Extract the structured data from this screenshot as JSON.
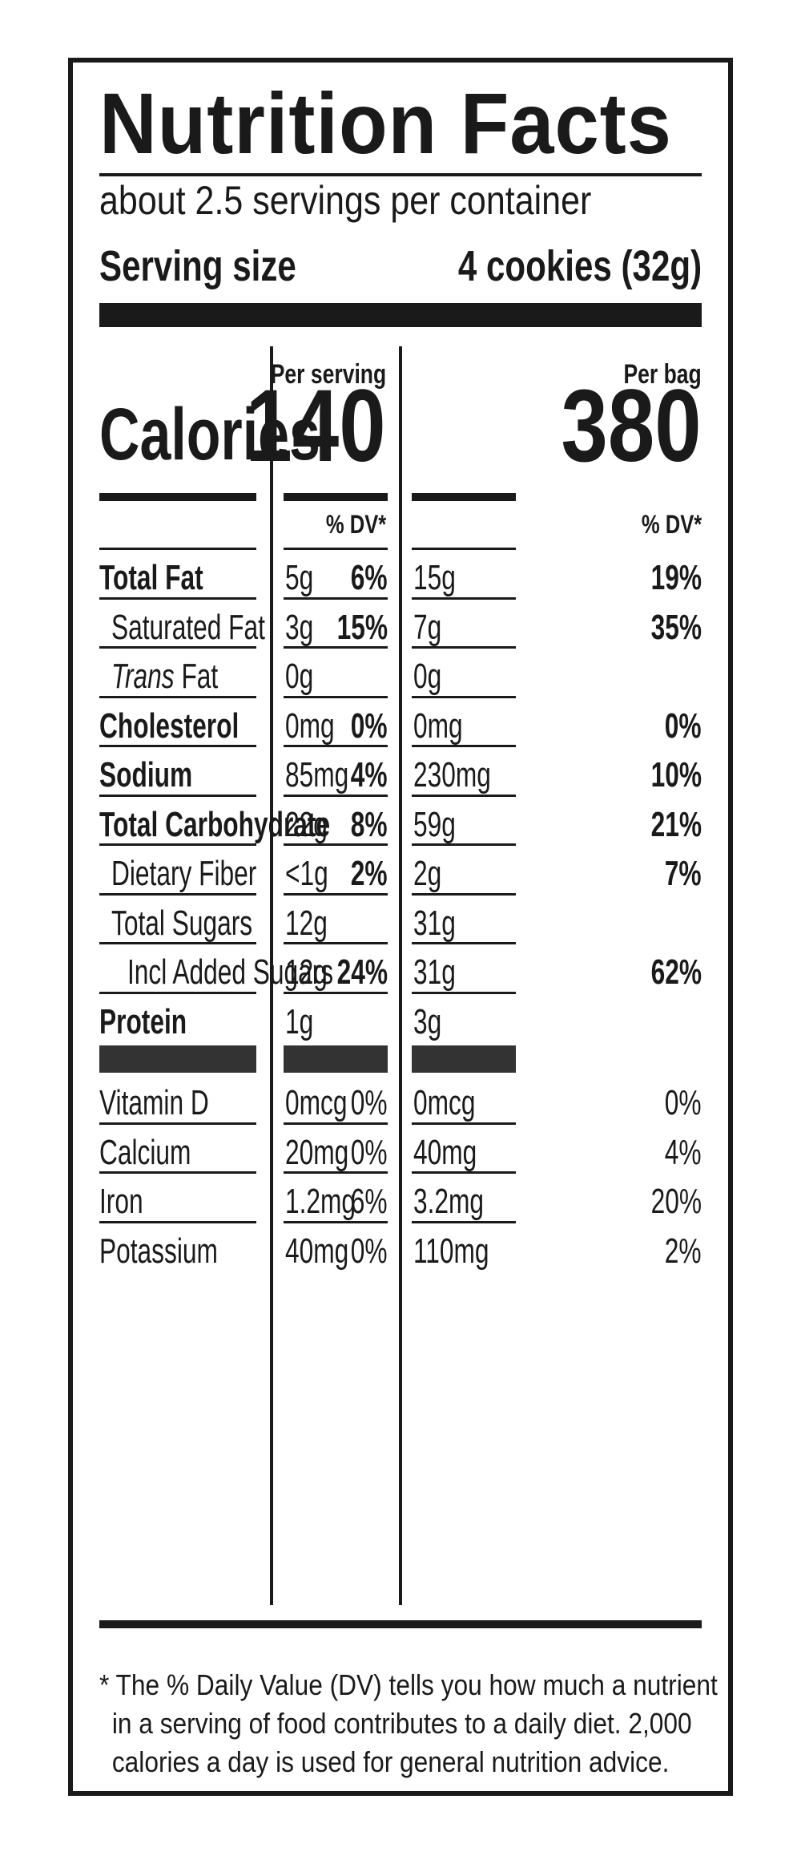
{
  "title": "Nutrition Facts",
  "servings_per_container": "about 2.5 servings per container",
  "serving_size_label": "Serving size",
  "serving_size_value": "4 cookies (32g)",
  "calories_label": "Calories",
  "per_serving_label": "Per serving",
  "per_bag_label": "Per bag",
  "calories_per_serving": "140",
  "calories_per_bag": "380",
  "dv_header": "% DV*",
  "nutrients": [
    {
      "name": "Total Fat",
      "s_amt": "5g",
      "s_dv": "6%",
      "b_amt": "15g",
      "b_dv": "19%"
    },
    {
      "name": "Saturated Fat",
      "s_amt": "3g",
      "s_dv": "15%",
      "b_amt": "7g",
      "b_dv": "35%"
    },
    {
      "name_em": "Trans",
      "name": " Fat",
      "s_amt": "0g",
      "s_dv": "",
      "b_amt": "0g",
      "b_dv": ""
    },
    {
      "name": "Cholesterol",
      "s_amt": "0mg",
      "s_dv": "0%",
      "b_amt": "0mg",
      "b_dv": "0%"
    },
    {
      "name": "Sodium",
      "s_amt": "85mg",
      "s_dv": "4%",
      "b_amt": "230mg",
      "b_dv": "10%"
    },
    {
      "name": "Total Carbohydrate",
      "s_amt": "22g",
      "s_dv": "8%",
      "b_amt": "59g",
      "b_dv": "21%"
    },
    {
      "name": "Dietary Fiber",
      "s_amt": "<1g",
      "s_dv": "2%",
      "b_amt": "2g",
      "b_dv": "7%"
    },
    {
      "name": "Total Sugars",
      "s_amt": "12g",
      "s_dv": "",
      "b_amt": "31g",
      "b_dv": ""
    },
    {
      "name": "Incl Added Sugars",
      "s_amt": "12g",
      "s_dv": "24%",
      "b_amt": "31g",
      "b_dv": "62%"
    },
    {
      "name": "Protein",
      "s_amt": "1g",
      "s_dv": "",
      "b_amt": "3g",
      "b_dv": ""
    }
  ],
  "vitamins": [
    {
      "name": "Vitamin D",
      "s_amt": "0mcg",
      "s_dv": "0%",
      "b_amt": "0mcg",
      "b_dv": "0%"
    },
    {
      "name": "Calcium",
      "s_amt": "20mg",
      "s_dv": "0%",
      "b_amt": "40mg",
      "b_dv": "4%"
    },
    {
      "name": "Iron",
      "s_amt": "1.2mg",
      "s_dv": "6%",
      "b_amt": "3.2mg",
      "b_dv": "20%"
    },
    {
      "name": "Potassium",
      "s_amt": "40mg",
      "s_dv": "0%",
      "b_amt": "110mg",
      "b_dv": "2%"
    }
  ],
  "footnote": [
    "* The % Daily Value (DV) tells you how much a nutrient",
    "in a serving of food contributes to a daily diet. 2,000",
    "calories a day is used for general nutrition advice."
  ]
}
